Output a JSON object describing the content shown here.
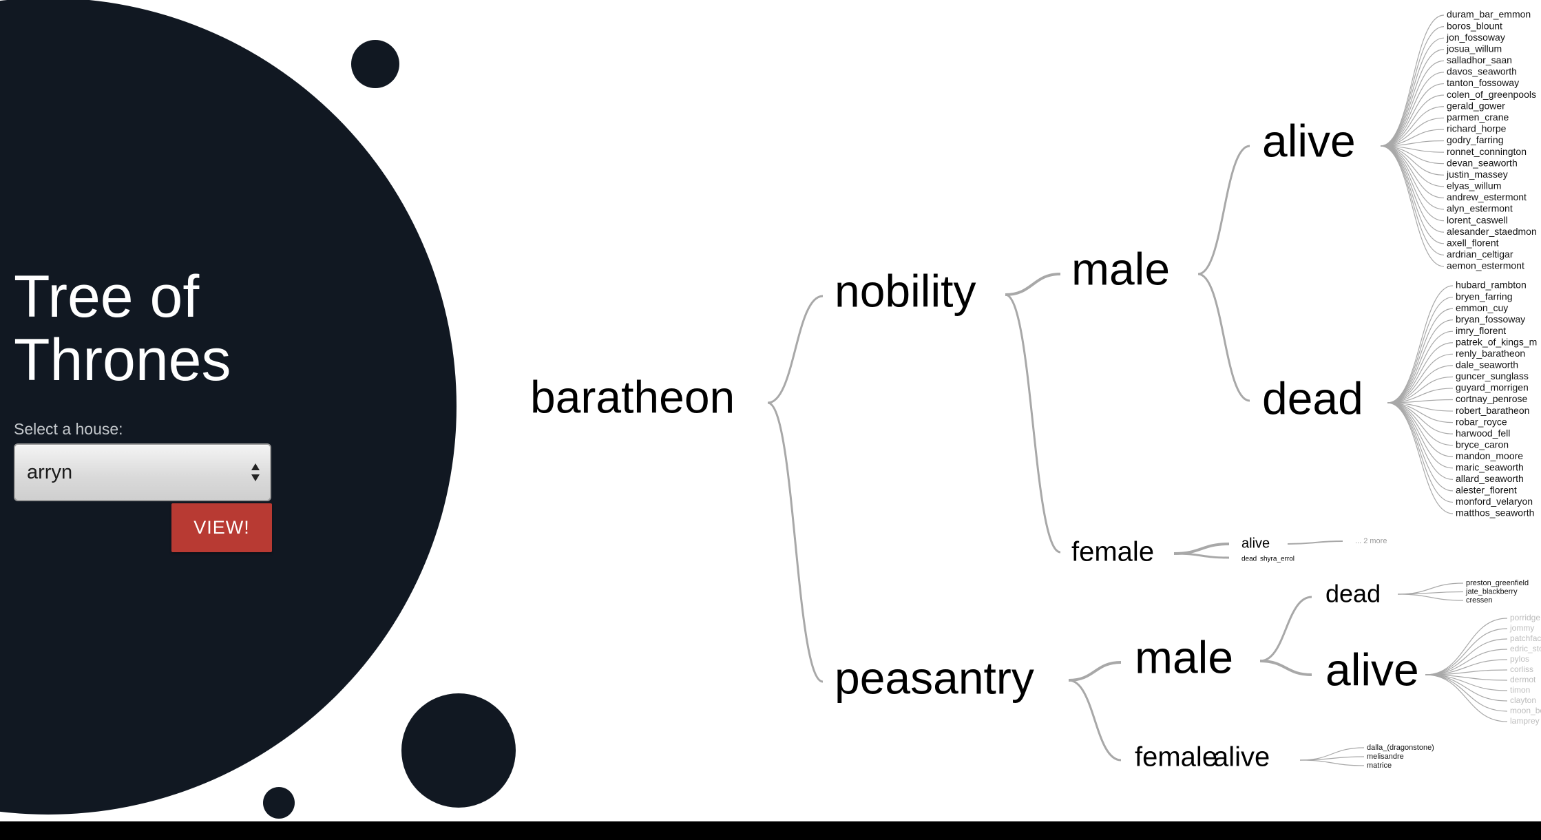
{
  "app": {
    "title_line1": "Tree of",
    "title_line2": "Thrones"
  },
  "controls": {
    "select_label": "Select a house:",
    "select_value": "arryn",
    "view_label": "VIEW!"
  },
  "colors": {
    "panel": "#111822",
    "button": "#b83a33",
    "link": "#a8a8a8",
    "footer": "#000000"
  },
  "tree": {
    "root": "baratheon",
    "nobility": "nobility",
    "peasantry": "peasantry",
    "nob_male": "male",
    "nob_female": "female",
    "nob_male_alive": "alive",
    "nob_male_dead": "dead",
    "nob_female_alive": "alive",
    "nob_female_dead": "dead",
    "nob_female_dead_name": "shyra_errol",
    "nob_female_more": "... 2 more",
    "peas_male": "male",
    "peas_female": "female",
    "peas_female_alive": "alive",
    "peas_male_dead": "dead",
    "peas_male_alive": "alive",
    "leaves": {
      "nob_male_alive": [
        "duram_bar_emmon",
        "boros_blount",
        "jon_fossoway",
        "josua_willum",
        "salladhor_saan",
        "davos_seaworth",
        "tanton_fossoway",
        "colen_of_greenpools",
        "gerald_gower",
        "parmen_crane",
        "richard_horpe",
        "godry_farring",
        "ronnet_connington",
        "devan_seaworth",
        "justin_massey",
        "elyas_willum",
        "andrew_estermont",
        "alyn_estermont",
        "lorent_caswell",
        "alesander_staedmon",
        "axell_florent",
        "ardrian_celtigar",
        "aemon_estermont"
      ],
      "nob_male_dead": [
        "hubard_rambton",
        "bryen_farring",
        "emmon_cuy",
        "bryan_fossoway",
        "imry_florent",
        "patrek_of_kings_m",
        "renly_baratheon",
        "dale_seaworth",
        "guncer_sunglass",
        "guyard_morrigen",
        "cortnay_penrose",
        "robert_baratheon",
        "robar_royce",
        "harwood_fell",
        "bryce_caron",
        "mandon_moore",
        "maric_seaworth",
        "allard_seaworth",
        "alester_florent",
        "monford_velaryon",
        "matthos_seaworth"
      ],
      "peas_male_dead": [
        "preston_greenfield",
        "jate_blackberry",
        "cressen"
      ],
      "peas_male_alive": [
        "porridge",
        "jommy",
        "patchface",
        "edric_storm",
        "pylos",
        "corliss",
        "dermot",
        "timon",
        "clayton",
        "moon_boy",
        "lamprey"
      ],
      "peas_female_alive": [
        "dalla_(dragonstone)",
        "melisandre",
        "matrice"
      ]
    }
  }
}
